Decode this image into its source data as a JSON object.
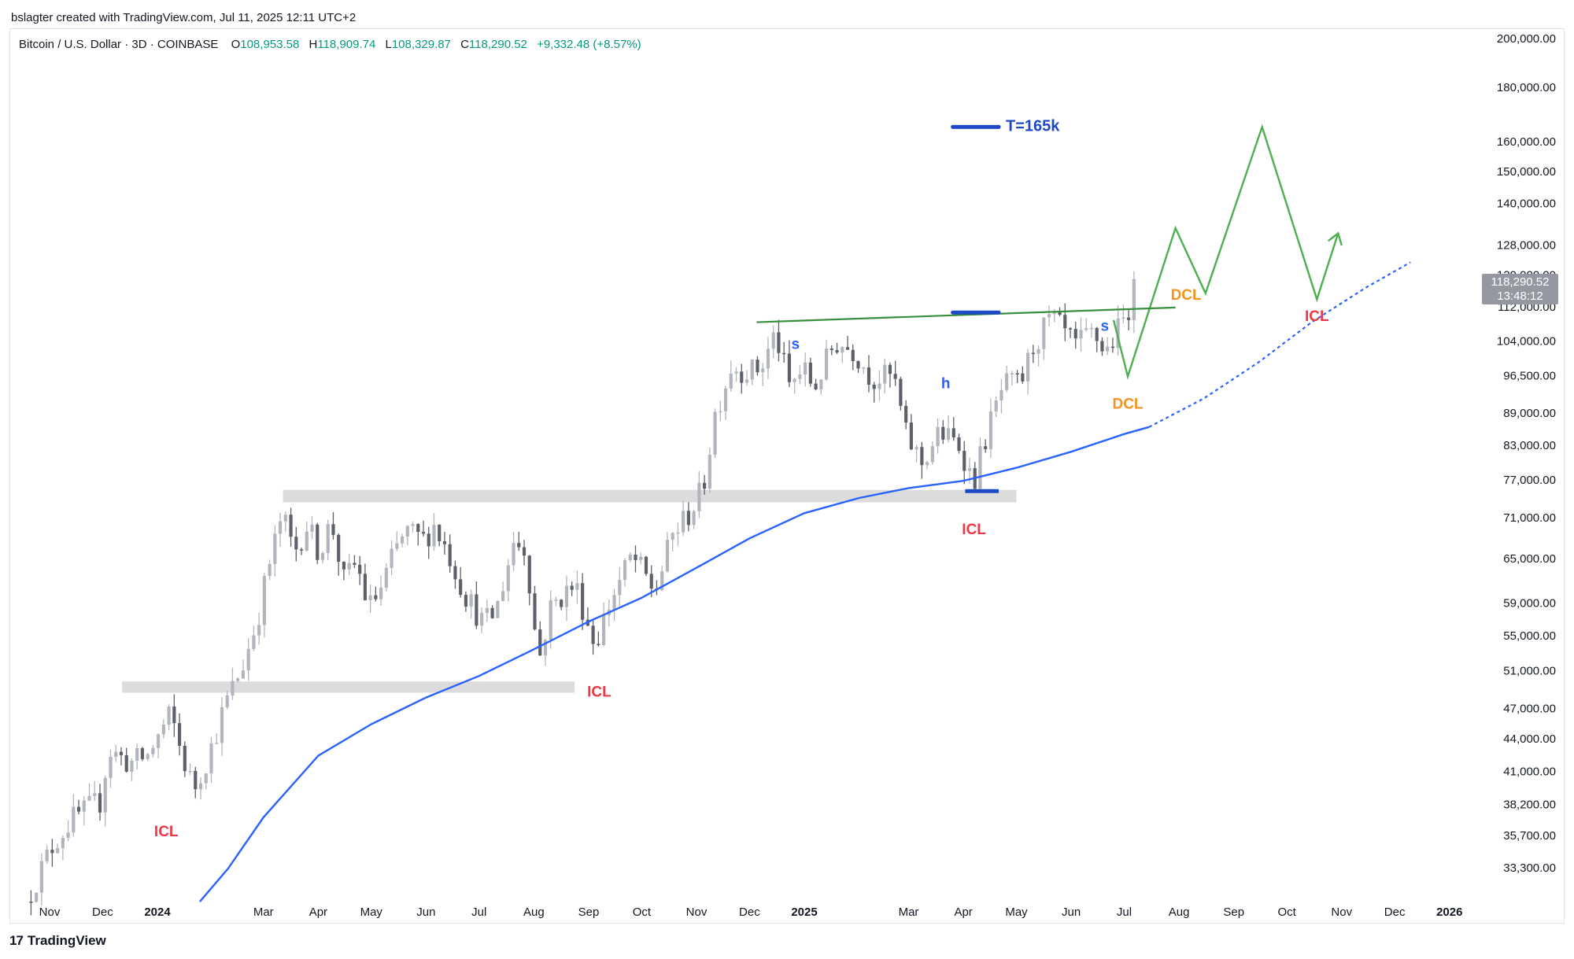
{
  "attribution": "bslagter created with TradingView.com, Jul 11, 2025 12:11 UTC+2",
  "symbol": {
    "name": "Bitcoin / U.S. Dollar · 3D · COINBASE",
    "o_label": "O",
    "o_value": "108,953.58",
    "h_label": "H",
    "h_value": "118,909.74",
    "l_label": "L",
    "l_value": "108,329.87",
    "c_label": "C",
    "c_value": "118,290.52",
    "change": "+9,332.48 (+8.57%)"
  },
  "price_tag": {
    "price": "118,290.52",
    "countdown": "13:48:12"
  },
  "footer": {
    "logo_mark": "17",
    "logo_text": "TradingView"
  },
  "colors": {
    "up_candle": "#b2b5be",
    "down_candle": "#5d606b",
    "ma_line": "#2962ff",
    "projection": "#4caf50",
    "trendline": "#388e3c",
    "zone": "#dcdcdc",
    "target_line": "#1e48c6",
    "icl": "#f23645",
    "dcl": "#f7931a",
    "annot_blue": "#2962ff"
  },
  "chart_data": {
    "type": "candlestick",
    "title": "Bitcoin / U.S. Dollar · 3D · COINBASE",
    "y_scale": "log",
    "ylim": [
      31000,
      205000
    ],
    "xlim": [
      "2023-10-18",
      "2026-02-20"
    ],
    "y_ticks": [
      "200,000.00",
      "180,000.00",
      "160,000.00",
      "150,000.00",
      "140,000.00",
      "128,000.00",
      "120,000.00",
      "112,000.00",
      "104,000.00",
      "96,500.00",
      "89,000.00",
      "83,000.00",
      "77,000.00",
      "71,000.00",
      "65,000.00",
      "59,000.00",
      "55,000.00",
      "51,000.00",
      "47,000.00",
      "44,000.00",
      "41,000.00",
      "38,200.00",
      "35,700.00",
      "33,300.00"
    ],
    "x_ticks": [
      {
        "label": "Nov",
        "date": "2023-11-01",
        "bold": false
      },
      {
        "label": "Dec",
        "date": "2023-12-01",
        "bold": false
      },
      {
        "label": "2024",
        "date": "2024-01-01",
        "bold": true
      },
      {
        "label": "Mar",
        "date": "2024-03-01",
        "bold": false
      },
      {
        "label": "Apr",
        "date": "2024-04-01",
        "bold": false
      },
      {
        "label": "May",
        "date": "2024-05-01",
        "bold": false
      },
      {
        "label": "Jun",
        "date": "2024-06-01",
        "bold": false
      },
      {
        "label": "Jul",
        "date": "2024-07-01",
        "bold": false
      },
      {
        "label": "Aug",
        "date": "2024-08-01",
        "bold": false
      },
      {
        "label": "Sep",
        "date": "2024-09-01",
        "bold": false
      },
      {
        "label": "Oct",
        "date": "2024-10-01",
        "bold": false
      },
      {
        "label": "Nov",
        "date": "2024-11-01",
        "bold": false
      },
      {
        "label": "Dec",
        "date": "2024-12-01",
        "bold": false
      },
      {
        "label": "2025",
        "date": "2025-01-01",
        "bold": true
      },
      {
        "label": "Mar",
        "date": "2025-03-01",
        "bold": false
      },
      {
        "label": "Apr",
        "date": "2025-04-01",
        "bold": false
      },
      {
        "label": "May",
        "date": "2025-05-01",
        "bold": false
      },
      {
        "label": "Jun",
        "date": "2025-06-01",
        "bold": false
      },
      {
        "label": "Jul",
        "date": "2025-07-01",
        "bold": false
      },
      {
        "label": "Aug",
        "date": "2025-08-01",
        "bold": false
      },
      {
        "label": "Sep",
        "date": "2025-09-01",
        "bold": false
      },
      {
        "label": "Oct",
        "date": "2025-10-01",
        "bold": false
      },
      {
        "label": "Nov",
        "date": "2025-11-01",
        "bold": false
      },
      {
        "label": "Dec",
        "date": "2025-12-01",
        "bold": false
      },
      {
        "label": "2026",
        "date": "2026-01-01",
        "bold": true
      }
    ],
    "price_path": [
      [
        "2023-10-20",
        31000
      ],
      [
        "2023-11-05",
        35200
      ],
      [
        "2023-11-15",
        37000
      ],
      [
        "2023-12-01",
        38500
      ],
      [
        "2023-12-06",
        43000
      ],
      [
        "2023-12-18",
        41800
      ],
      [
        "2023-12-28",
        42500
      ],
      [
        "2024-01-10",
        46500
      ],
      [
        "2024-01-16",
        42800
      ],
      [
        "2024-01-23",
        39500
      ],
      [
        "2024-02-01",
        42800
      ],
      [
        "2024-02-10",
        47500
      ],
      [
        "2024-02-20",
        51800
      ],
      [
        "2024-02-28",
        57000
      ],
      [
        "2024-03-05",
        63500
      ],
      [
        "2024-03-13",
        71500
      ],
      [
        "2024-03-20",
        66000
      ],
      [
        "2024-03-27",
        70000
      ],
      [
        "2024-04-03",
        66000
      ],
      [
        "2024-04-10",
        70500
      ],
      [
        "2024-04-17",
        62000
      ],
      [
        "2024-04-24",
        64500
      ],
      [
        "2024-05-01",
        58500
      ],
      [
        "2024-05-08",
        61000
      ],
      [
        "2024-05-15",
        65500
      ],
      [
        "2024-05-22",
        69000
      ],
      [
        "2024-06-01",
        67800
      ],
      [
        "2024-06-07",
        70000
      ],
      [
        "2024-06-15",
        66000
      ],
      [
        "2024-06-24",
        60500
      ],
      [
        "2024-07-05",
        56500
      ],
      [
        "2024-07-12",
        58000
      ],
      [
        "2024-07-22",
        67500
      ],
      [
        "2024-07-29",
        66500
      ],
      [
        "2024-08-05",
        52000
      ],
      [
        "2024-08-12",
        58500
      ],
      [
        "2024-08-20",
        60500
      ],
      [
        "2024-08-26",
        61500
      ],
      [
        "2024-09-06",
        54000
      ],
      [
        "2024-09-15",
        59500
      ],
      [
        "2024-09-27",
        65500
      ],
      [
        "2024-10-10",
        60500
      ],
      [
        "2024-10-20",
        68500
      ],
      [
        "2024-10-30",
        72000
      ],
      [
        "2024-11-06",
        75500
      ],
      [
        "2024-11-13",
        89000
      ],
      [
        "2024-11-22",
        98500
      ],
      [
        "2024-12-05",
        97500
      ],
      [
        "2024-12-10",
        99000
      ],
      [
        "2024-12-17",
        106000
      ],
      [
        "2024-12-25",
        94500
      ],
      [
        "2025-01-02",
        98000
      ],
      [
        "2025-01-08",
        94000
      ],
      [
        "2025-01-20",
        104000
      ],
      [
        "2025-01-31",
        102000
      ],
      [
        "2025-02-10",
        96000
      ],
      [
        "2025-02-22",
        96500
      ],
      [
        "2025-03-01",
        85000
      ],
      [
        "2025-03-10",
        80000
      ],
      [
        "2025-03-20",
        85500
      ],
      [
        "2025-04-01",
        83000
      ],
      [
        "2025-04-08",
        76500
      ],
      [
        "2025-04-15",
        84500
      ],
      [
        "2025-04-25",
        94500
      ],
      [
        "2025-05-05",
        95000
      ],
      [
        "2025-05-12",
        103000
      ],
      [
        "2025-05-22",
        109500
      ],
      [
        "2025-06-05",
        103000
      ],
      [
        "2025-06-15",
        106000
      ],
      [
        "2025-06-22",
        101500
      ],
      [
        "2025-07-02",
        108900
      ],
      [
        "2025-07-10",
        118290
      ]
    ],
    "series": [
      {
        "name": "",
        "kind": "moving_average",
        "points": [
          [
            "2024-01-25",
            31000
          ],
          [
            "2024-02-10",
            33300
          ],
          [
            "2024-03-01",
            37200
          ],
          [
            "2024-04-01",
            42500
          ],
          [
            "2024-05-01",
            45500
          ],
          [
            "2024-06-01",
            48200
          ],
          [
            "2024-07-01",
            50500
          ],
          [
            "2024-08-01",
            53500
          ],
          [
            "2024-09-01",
            56800
          ],
          [
            "2024-10-01",
            59800
          ],
          [
            "2024-11-01",
            63800
          ],
          [
            "2024-12-01",
            68000
          ],
          [
            "2025-01-01",
            71800
          ],
          [
            "2025-02-01",
            74200
          ],
          [
            "2025-03-01",
            75800
          ],
          [
            "2025-04-01",
            77000
          ],
          [
            "2025-05-01",
            79200
          ],
          [
            "2025-06-01",
            82000
          ],
          [
            "2025-07-01",
            85200
          ],
          [
            "2025-07-15",
            86500
          ]
        ]
      },
      {
        "name": "",
        "kind": "ma_projection_dotted",
        "points": [
          [
            "2025-07-15",
            86500
          ],
          [
            "2025-08-15",
            92000
          ],
          [
            "2025-09-15",
            99500
          ],
          [
            "2025-10-15",
            108500
          ],
          [
            "2025-11-15",
            117000
          ],
          [
            "2025-12-10",
            123500
          ]
        ]
      },
      {
        "name": "",
        "kind": "projection_path",
        "points": [
          [
            "2025-06-25",
            109000
          ],
          [
            "2025-07-03",
            96500
          ],
          [
            "2025-07-30",
            133000
          ],
          [
            "2025-08-16",
            115500
          ],
          [
            "2025-09-17",
            165500
          ],
          [
            "2025-10-18",
            114000
          ],
          [
            "2025-10-30",
            131500
          ]
        ]
      }
    ],
    "trendline": [
      [
        "2024-12-05",
        108500
      ],
      [
        "2025-07-30",
        112000
      ]
    ],
    "zones": [
      {
        "x": [
          "2024-03-12",
          "2025-05-01"
        ],
        "y": [
          73500,
          75500
        ]
      },
      {
        "x": [
          "2023-12-12",
          "2024-08-24"
        ],
        "y": [
          48700,
          49900
        ]
      }
    ],
    "target_line": {
      "x": [
        "2025-03-26",
        "2025-04-21"
      ],
      "y": 165500
    },
    "neckline_marker": {
      "x": [
        "2025-03-26",
        "2025-04-21"
      ],
      "y": 110800
    },
    "low_marker": {
      "x": [
        "2025-04-02",
        "2025-04-21"
      ],
      "y": 75300
    },
    "annotations": [
      {
        "text": "T=165k",
        "color": "target",
        "date": "2025-04-25",
        "price": 165500,
        "size": 20,
        "anchor": "start"
      },
      {
        "text": "ICL",
        "color": "icl",
        "date": "2024-01-06",
        "price": 36000,
        "size": 19,
        "anchor": "middle"
      },
      {
        "text": "ICL",
        "color": "icl",
        "date": "2024-09-07",
        "price": 48700,
        "size": 19,
        "anchor": "middle"
      },
      {
        "text": "ICL",
        "color": "icl",
        "date": "2025-04-07",
        "price": 69200,
        "size": 19,
        "anchor": "middle"
      },
      {
        "text": "ICL",
        "color": "icl",
        "date": "2025-10-18",
        "price": 109700,
        "size": 19,
        "anchor": "middle"
      },
      {
        "text": "DCL",
        "color": "dcl",
        "date": "2025-07-03",
        "price": 90800,
        "size": 19,
        "anchor": "middle"
      },
      {
        "text": "DCL",
        "color": "dcl",
        "date": "2025-08-05",
        "price": 114900,
        "size": 19,
        "anchor": "middle"
      },
      {
        "text": "s",
        "color": "blue",
        "date": "2024-12-27",
        "price": 103300,
        "size": 19,
        "anchor": "middle"
      },
      {
        "text": "h",
        "color": "blue",
        "date": "2025-03-22",
        "price": 94900,
        "size": 19,
        "anchor": "middle"
      },
      {
        "text": "s",
        "color": "blue",
        "date": "2025-06-20",
        "price": 107400,
        "size": 19,
        "anchor": "middle"
      }
    ]
  }
}
